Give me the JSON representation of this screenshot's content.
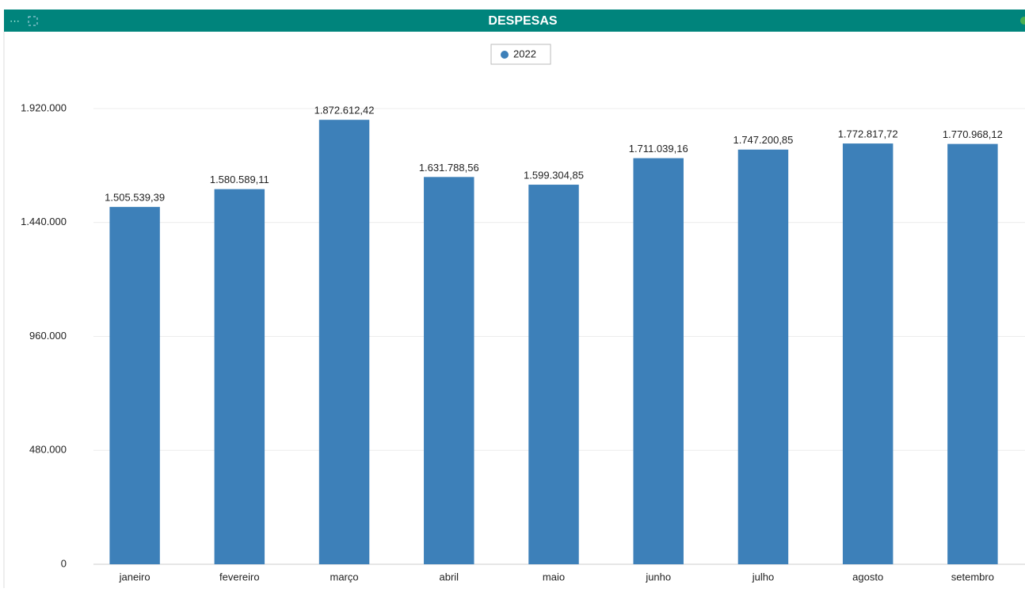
{
  "chart_data": {
    "type": "bar",
    "title": "DESPESAS",
    "categories": [
      "janeiro",
      "fevereiro",
      "março",
      "abril",
      "maio",
      "junho",
      "julho",
      "agosto",
      "setembro"
    ],
    "series": [
      {
        "name": "2022",
        "color": "#3d80b9",
        "values": [
          1505539.39,
          1580589.11,
          1872612.42,
          1631788.56,
          1599304.85,
          1711039.16,
          1747200.85,
          1772817.72,
          1770968.12
        ],
        "value_labels": [
          "1.505.539,39",
          "1.580.589,11",
          "1.872.612,42",
          "1.631.788,56",
          "1.599.304,85",
          "1.711.039,16",
          "1.747.200,85",
          "1.772.817,72",
          "1.770.968,12"
        ]
      }
    ],
    "ylim": [
      0,
      1920000
    ],
    "yticks": [
      0,
      {
        "value": 480000,
        "label": "480.000"
      },
      {
        "value": 960000,
        "label": "960.000"
      },
      {
        "value": 1440000,
        "label": "1.440.000"
      },
      {
        "value": 1920000,
        "label": "1.920.000"
      }
    ],
    "grid": true,
    "legend": "top"
  }
}
